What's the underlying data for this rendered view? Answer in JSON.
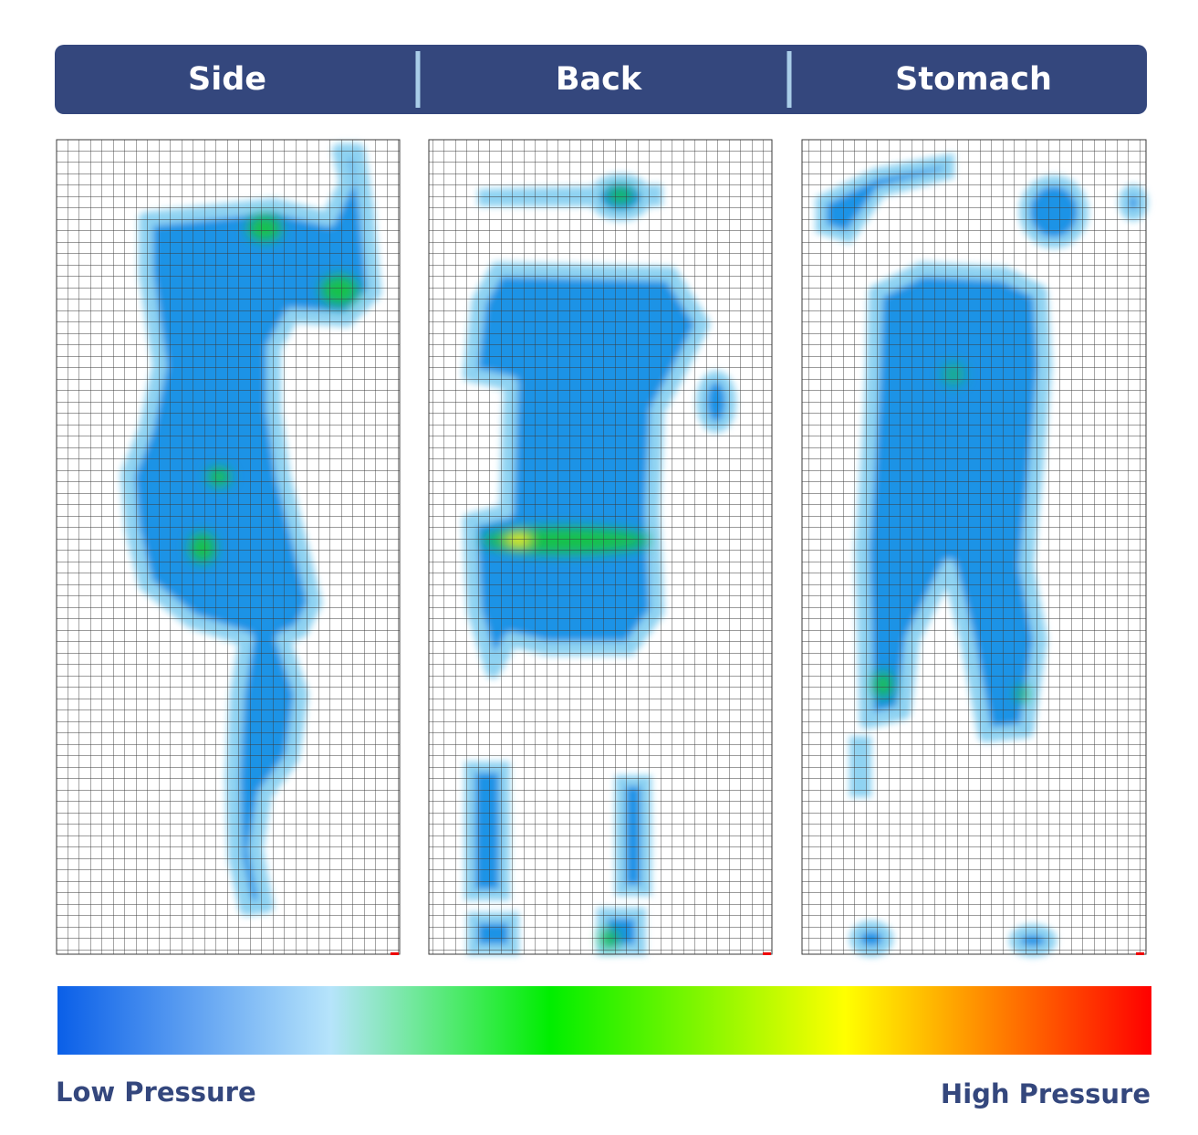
{
  "header": {
    "tabs": [
      "Side",
      "Back",
      "Stomach"
    ]
  },
  "legend": {
    "low": "Low Pressure",
    "high": "High Pressure"
  }
}
